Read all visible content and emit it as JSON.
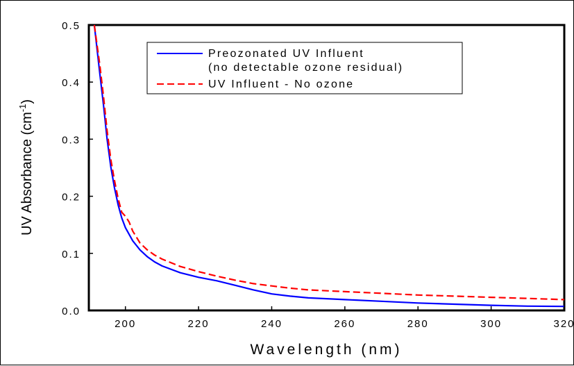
{
  "chart_data": {
    "type": "line",
    "xlabel": "Wavelength (nm)",
    "ylabel": "UV Absorbance (cm-1)",
    "ylabel_main": "UV Absorbance (cm",
    "ylabel_sup": "-1",
    "ylabel_close": ")",
    "xlim": [
      190,
      320
    ],
    "ylim": [
      0,
      0.5
    ],
    "x_ticks": [
      200,
      220,
      240,
      260,
      280,
      300,
      320
    ],
    "x_tick_labels": [
      "200",
      "220",
      "240",
      "260",
      "280",
      "300",
      "320"
    ],
    "y_ticks": [
      0.0,
      0.1,
      0.2,
      0.3,
      0.4,
      0.5
    ],
    "y_tick_labels": [
      "0.0",
      "0.1",
      "0.2",
      "0.3",
      "0.4",
      "0.5"
    ],
    "grid": false,
    "legend_position": "top-center",
    "series": [
      {
        "name": "Preozonated UV Influent (no detectable ozone residual)",
        "name_line1": "Preozonated UV Influent",
        "name_line2": "(no detectable ozone residual)",
        "color": "#0000ff",
        "dash": "solid",
        "x": [
          191.5,
          193,
          194,
          195,
          196,
          197,
          198,
          199,
          200,
          202,
          204,
          206,
          208,
          210,
          215,
          220,
          225,
          230,
          235,
          240,
          245,
          250,
          260,
          270,
          280,
          290,
          300,
          310,
          320
        ],
        "y": [
          0.5,
          0.415,
          0.36,
          0.3,
          0.252,
          0.215,
          0.185,
          0.162,
          0.145,
          0.122,
          0.106,
          0.094,
          0.085,
          0.078,
          0.066,
          0.058,
          0.052,
          0.044,
          0.036,
          0.029,
          0.025,
          0.022,
          0.019,
          0.016,
          0.013,
          0.011,
          0.009,
          0.0075,
          0.007
        ]
      },
      {
        "name": "UV Influent - No ozone",
        "color": "#ff0000",
        "dash": "dashed",
        "x": [
          191.5,
          193,
          194,
          195,
          196,
          197,
          198,
          199,
          200,
          201,
          202,
          204,
          206,
          208,
          210,
          215,
          220,
          225,
          230,
          235,
          240,
          245,
          250,
          260,
          270,
          280,
          290,
          300,
          310,
          320
        ],
        "y": [
          0.5,
          0.43,
          0.375,
          0.315,
          0.265,
          0.228,
          0.196,
          0.172,
          0.165,
          0.155,
          0.139,
          0.118,
          0.106,
          0.097,
          0.09,
          0.077,
          0.068,
          0.06,
          0.053,
          0.047,
          0.043,
          0.039,
          0.036,
          0.033,
          0.03,
          0.027,
          0.025,
          0.023,
          0.021,
          0.019
        ]
      }
    ]
  }
}
